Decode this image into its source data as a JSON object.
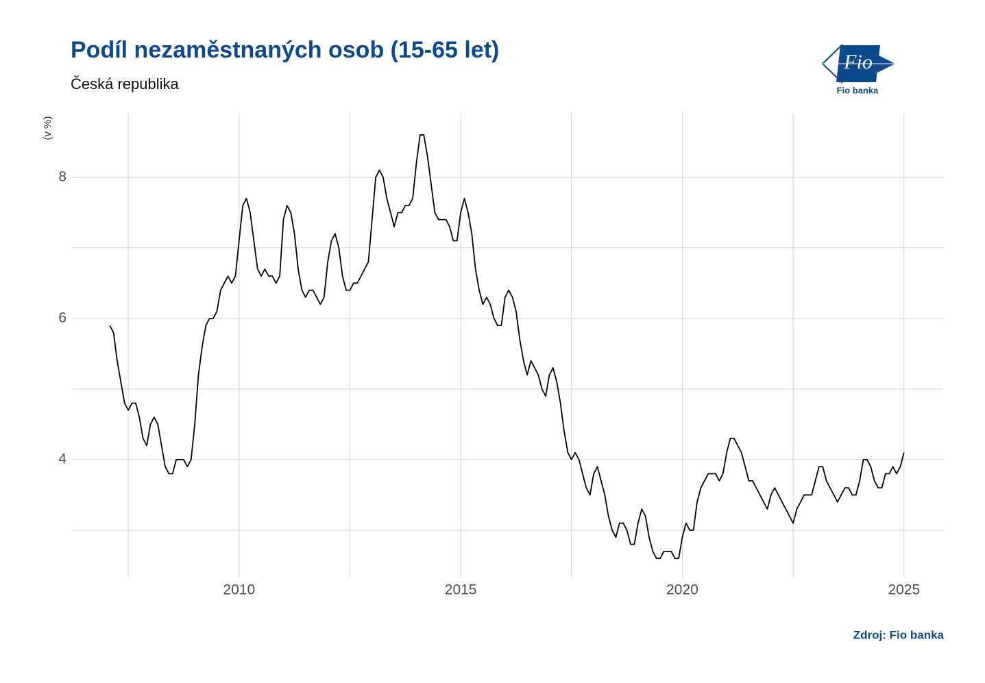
{
  "chart_data": {
    "type": "line",
    "title": "Podíl nezaměstnaných osob (15-65 let)",
    "subtitle": "Česká republika",
    "ylabel": "(v %)",
    "source": "Zdroj: Fio banka",
    "color": "#000000",
    "grid": true,
    "xlim": [
      2006.23,
      2025.9
    ],
    "ylim": [
      2.33,
      8.91
    ],
    "xticks": [
      2010,
      2015,
      2020,
      2025
    ],
    "yticks": [
      4,
      6,
      8
    ],
    "x_minor_ticks": [
      2007.5,
      2012.5,
      2017.5,
      2022.5
    ],
    "y_minor_ticks": [
      3,
      5,
      7
    ],
    "x": [
      2007.083,
      2007.167,
      2007.25,
      2007.333,
      2007.417,
      2007.5,
      2007.583,
      2007.667,
      2007.75,
      2007.833,
      2007.917,
      2008,
      2008.083,
      2008.167,
      2008.25,
      2008.333,
      2008.417,
      2008.5,
      2008.583,
      2008.667,
      2008.75,
      2008.833,
      2008.917,
      2009,
      2009.083,
      2009.167,
      2009.25,
      2009.333,
      2009.417,
      2009.5,
      2009.583,
      2009.667,
      2009.75,
      2009.833,
      2009.917,
      2010,
      2010.083,
      2010.167,
      2010.25,
      2010.333,
      2010.417,
      2010.5,
      2010.583,
      2010.667,
      2010.75,
      2010.833,
      2010.917,
      2011,
      2011.083,
      2011.167,
      2011.25,
      2011.333,
      2011.417,
      2011.5,
      2011.583,
      2011.667,
      2011.75,
      2011.833,
      2011.917,
      2012,
      2012.083,
      2012.167,
      2012.25,
      2012.333,
      2012.417,
      2012.5,
      2012.583,
      2012.667,
      2012.75,
      2012.833,
      2012.917,
      2013,
      2013.083,
      2013.167,
      2013.25,
      2013.333,
      2013.417,
      2013.5,
      2013.583,
      2013.667,
      2013.75,
      2013.833,
      2013.917,
      2014,
      2014.083,
      2014.167,
      2014.25,
      2014.333,
      2014.417,
      2014.5,
      2014.583,
      2014.667,
      2014.75,
      2014.833,
      2014.917,
      2015,
      2015.083,
      2015.167,
      2015.25,
      2015.333,
      2015.417,
      2015.5,
      2015.583,
      2015.667,
      2015.75,
      2015.833,
      2015.917,
      2016,
      2016.083,
      2016.167,
      2016.25,
      2016.333,
      2016.417,
      2016.5,
      2016.583,
      2016.667,
      2016.75,
      2016.833,
      2016.917,
      2017,
      2017.083,
      2017.167,
      2017.25,
      2017.333,
      2017.417,
      2017.5,
      2017.583,
      2017.667,
      2017.75,
      2017.833,
      2017.917,
      2018,
      2018.083,
      2018.167,
      2018.25,
      2018.333,
      2018.417,
      2018.5,
      2018.583,
      2018.667,
      2018.75,
      2018.833,
      2018.917,
      2019,
      2019.083,
      2019.167,
      2019.25,
      2019.333,
      2019.417,
      2019.5,
      2019.583,
      2019.667,
      2019.75,
      2019.833,
      2019.917,
      2020,
      2020.083,
      2020.167,
      2020.25,
      2020.333,
      2020.417,
      2020.5,
      2020.583,
      2020.667,
      2020.75,
      2020.833,
      2020.917,
      2021,
      2021.083,
      2021.167,
      2021.25,
      2021.333,
      2021.417,
      2021.5,
      2021.583,
      2021.667,
      2021.75,
      2021.833,
      2021.917,
      2022,
      2022.083,
      2022.167,
      2022.25,
      2022.333,
      2022.417,
      2022.5,
      2022.583,
      2022.667,
      2022.75,
      2022.833,
      2022.917,
      2023,
      2023.083,
      2023.167,
      2023.25,
      2023.333,
      2023.417,
      2023.5,
      2023.583,
      2023.667,
      2023.75,
      2023.833,
      2023.917,
      2024,
      2024.083,
      2024.167,
      2024.25,
      2024.333,
      2024.417,
      2024.5,
      2024.583,
      2024.667,
      2024.75,
      2024.833,
      2024.917,
      2025
    ],
    "values": [
      5.9,
      5.8,
      5.4,
      5.1,
      4.8,
      4.7,
      4.8,
      4.8,
      4.6,
      4.3,
      4.2,
      4.5,
      4.6,
      4.5,
      4.2,
      3.9,
      3.8,
      3.8,
      4.0,
      4.0,
      4.0,
      3.9,
      4.0,
      4.5,
      5.2,
      5.6,
      5.9,
      6.0,
      6.0,
      6.1,
      6.4,
      6.5,
      6.6,
      6.5,
      6.6,
      7.1,
      7.6,
      7.7,
      7.5,
      7.1,
      6.7,
      6.6,
      6.7,
      6.6,
      6.6,
      6.5,
      6.6,
      7.4,
      7.6,
      7.5,
      7.2,
      6.7,
      6.4,
      6.3,
      6.4,
      6.4,
      6.3,
      6.2,
      6.3,
      6.8,
      7.1,
      7.2,
      7.0,
      6.6,
      6.4,
      6.4,
      6.5,
      6.5,
      6.6,
      6.7,
      6.8,
      7.4,
      8.0,
      8.1,
      8.0,
      7.7,
      7.5,
      7.3,
      7.5,
      7.5,
      7.6,
      7.6,
      7.7,
      8.2,
      8.6,
      8.6,
      8.3,
      7.9,
      7.5,
      7.4,
      7.4,
      7.4,
      7.3,
      7.1,
      7.1,
      7.5,
      7.7,
      7.5,
      7.2,
      6.7,
      6.4,
      6.2,
      6.3,
      6.2,
      6.0,
      5.9,
      5.9,
      6.3,
      6.4,
      6.3,
      6.1,
      5.7,
      5.4,
      5.2,
      5.4,
      5.3,
      5.2,
      5.0,
      4.9,
      5.2,
      5.3,
      5.1,
      4.8,
      4.4,
      4.1,
      4.0,
      4.1,
      4.0,
      3.8,
      3.6,
      3.5,
      3.8,
      3.9,
      3.7,
      3.5,
      3.2,
      3.0,
      2.9,
      3.1,
      3.1,
      3.0,
      2.8,
      2.8,
      3.1,
      3.3,
      3.2,
      2.9,
      2.7,
      2.6,
      2.6,
      2.7,
      2.7,
      2.7,
      2.6,
      2.6,
      2.9,
      3.1,
      3.0,
      3.0,
      3.4,
      3.6,
      3.7,
      3.8,
      3.8,
      3.8,
      3.7,
      3.8,
      4.1,
      4.3,
      4.3,
      4.2,
      4.1,
      3.9,
      3.7,
      3.7,
      3.6,
      3.5,
      3.4,
      3.3,
      3.5,
      3.6,
      3.5,
      3.4,
      3.3,
      3.2,
      3.1,
      3.3,
      3.4,
      3.5,
      3.5,
      3.5,
      3.7,
      3.9,
      3.9,
      3.7,
      3.6,
      3.5,
      3.4,
      3.5,
      3.6,
      3.6,
      3.5,
      3.5,
      3.7,
      4.0,
      4.0,
      3.9,
      3.7,
      3.6,
      3.6,
      3.8,
      3.8,
      3.9,
      3.8,
      3.9,
      4.1
    ]
  },
  "logo": {
    "mark": "Fio",
    "name": "Fio banka"
  }
}
